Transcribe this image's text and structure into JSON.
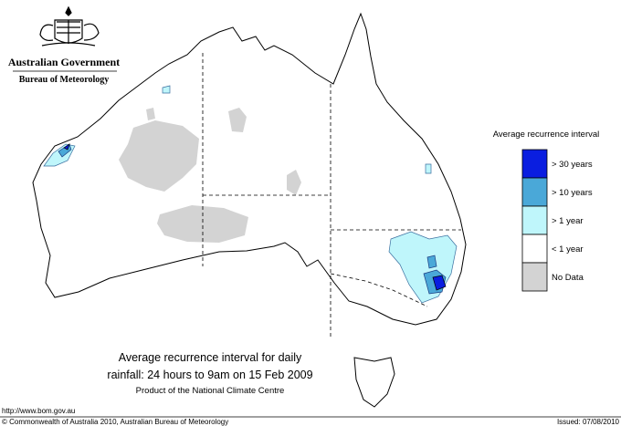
{
  "header": {
    "government": "Australian Government",
    "bureau": "Bureau of Meteorology"
  },
  "legend": {
    "title": "Average recurrence interval",
    "items": [
      {
        "label": "> 30 years",
        "color": "#0a1ee0"
      },
      {
        "label": "> 10 years",
        "color": "#4aa8d8"
      },
      {
        "label": "> 1 year",
        "color": "#bff6fb"
      },
      {
        "label": "< 1 year",
        "color": "#ffffff"
      },
      {
        "label": "No Data",
        "color": "#d3d3d3"
      }
    ]
  },
  "caption": {
    "lines": [
      "Average recurrence interval for daily",
      "rainfall: 24 hours to 9am on 15 Feb 2009"
    ],
    "credit": "Product of the National Climate Centre"
  },
  "footer": {
    "url": "http://www.bom.gov.au",
    "copyright": "© Commonwealth of Australia 2010, Australian Bureau of Meteorology",
    "issued": "Issued: 07/08/2010"
  }
}
